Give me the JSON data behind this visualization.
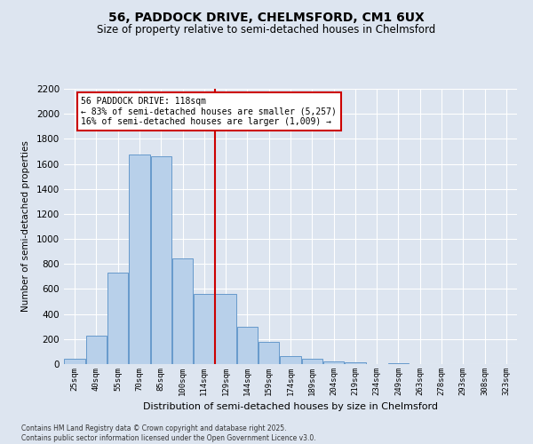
{
  "title": "56, PADDOCK DRIVE, CHELMSFORD, CM1 6UX",
  "subtitle": "Size of property relative to semi-detached houses in Chelmsford",
  "xlabel": "Distribution of semi-detached houses by size in Chelmsford",
  "ylabel": "Number of semi-detached properties",
  "bar_labels": [
    "25sqm",
    "40sqm",
    "55sqm",
    "70sqm",
    "85sqm",
    "100sqm",
    "114sqm",
    "129sqm",
    "144sqm",
    "159sqm",
    "174sqm",
    "189sqm",
    "204sqm",
    "219sqm",
    "234sqm",
    "249sqm",
    "263sqm",
    "278sqm",
    "293sqm",
    "308sqm",
    "323sqm"
  ],
  "bar_values": [
    40,
    225,
    730,
    1675,
    1660,
    845,
    560,
    560,
    295,
    175,
    65,
    40,
    22,
    12,
    0,
    10,
    0,
    0,
    0,
    0,
    0
  ],
  "bar_color": "#b8d0ea",
  "bar_edge_color": "#6699cc",
  "vline_index": 6,
  "vline_color": "#cc0000",
  "annotation_title": "56 PADDOCK DRIVE: 118sqm",
  "annotation_line1": "← 83% of semi-detached houses are smaller (5,257)",
  "annotation_line2": "16% of semi-detached houses are larger (1,009) →",
  "annotation_box_color": "#cc0000",
  "ylim": [
    0,
    2200
  ],
  "yticks": [
    0,
    200,
    400,
    600,
    800,
    1000,
    1200,
    1400,
    1600,
    1800,
    2000,
    2200
  ],
  "background_color": "#dde5f0",
  "grid_color": "#ffffff",
  "footer_line1": "Contains HM Land Registry data © Crown copyright and database right 2025.",
  "footer_line2": "Contains public sector information licensed under the Open Government Licence v3.0."
}
